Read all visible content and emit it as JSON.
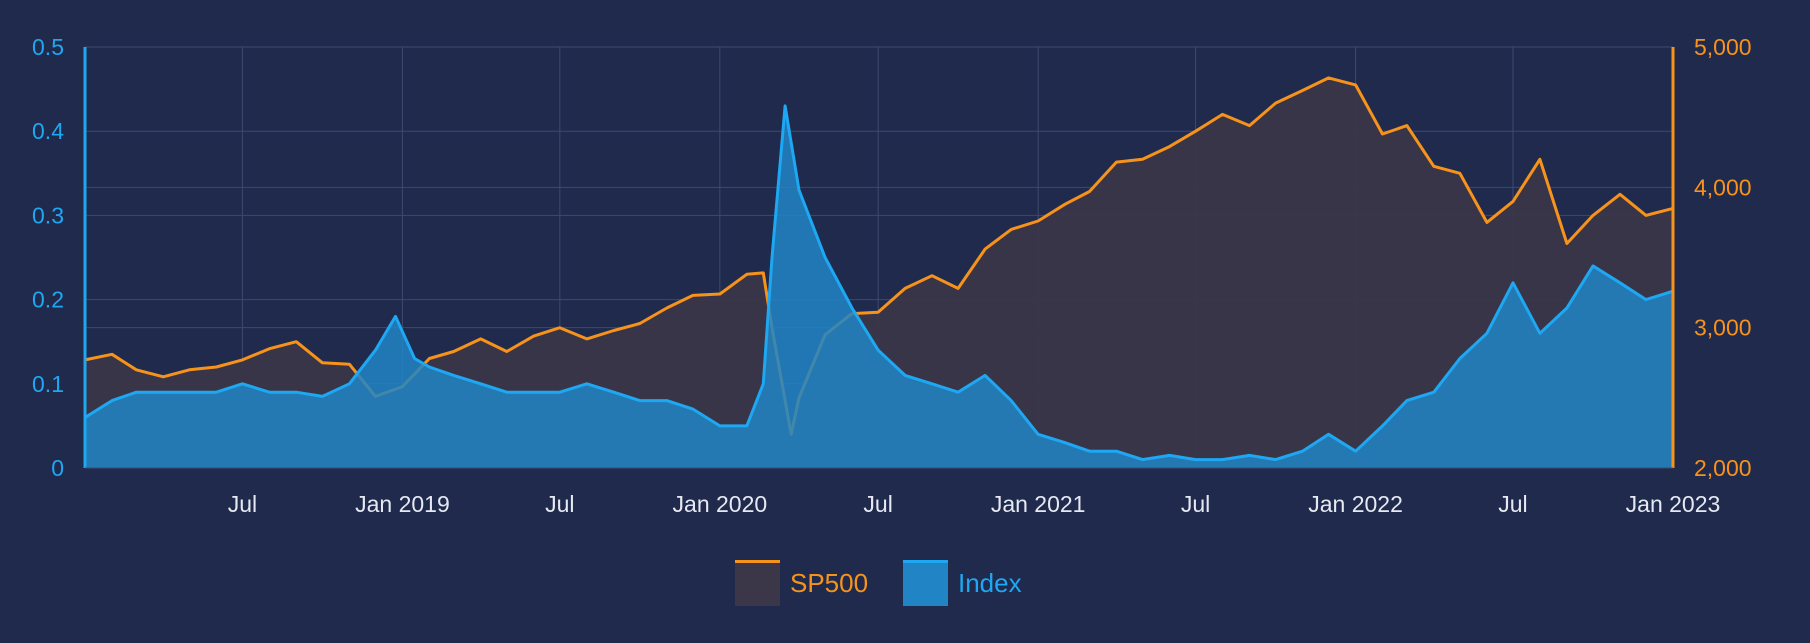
{
  "colors": {
    "background": "#1f2a4d",
    "grid": "#3d4a6e",
    "sp500_line": "#f7931a",
    "sp500_fill": "#3b3648",
    "index_line": "#1ea7f2",
    "index_fill": "#2185c5",
    "x_tick": "#e6e9f2"
  },
  "chart_data": {
    "type": "area",
    "grid": true,
    "legend_position": "bottom-center",
    "x_range": [
      "2018-01-01",
      "2023-01-01"
    ],
    "x_ticks": [
      "Jul",
      "Jan 2019",
      "Jul",
      "Jan 2020",
      "Jul",
      "Jan 2021",
      "Jul",
      "Jan 2022",
      "Jul",
      "Jan 2023"
    ],
    "x_tick_dates": [
      "2018-07-01",
      "2019-01-01",
      "2019-07-01",
      "2020-01-01",
      "2020-07-01",
      "2021-01-01",
      "2021-07-01",
      "2022-01-01",
      "2022-07-01",
      "2023-01-01"
    ],
    "y_left": {
      "range": [
        0,
        0.5
      ],
      "ticks": [
        "0",
        "0.1",
        "0.2",
        "0.3",
        "0.4",
        "0.5"
      ]
    },
    "y_right": {
      "range": [
        2000,
        5000
      ],
      "ticks": [
        "2,000",
        "3,000",
        "4,000",
        "5,000"
      ]
    },
    "series": [
      {
        "name": "SP500",
        "axis": "right",
        "x": [
          "2018-01-01",
          "2018-02-01",
          "2018-03-01",
          "2018-04-01",
          "2018-05-01",
          "2018-06-01",
          "2018-07-01",
          "2018-08-01",
          "2018-09-01",
          "2018-10-01",
          "2018-11-01",
          "2018-12-01",
          "2019-01-01",
          "2019-02-01",
          "2019-03-01",
          "2019-04-01",
          "2019-05-01",
          "2019-06-01",
          "2019-07-01",
          "2019-08-01",
          "2019-09-01",
          "2019-10-01",
          "2019-11-01",
          "2019-12-01",
          "2020-01-01",
          "2020-02-01",
          "2020-02-20",
          "2020-03-01",
          "2020-03-23",
          "2020-04-01",
          "2020-05-01",
          "2020-06-01",
          "2020-07-01",
          "2020-08-01",
          "2020-09-01",
          "2020-10-01",
          "2020-11-01",
          "2020-12-01",
          "2021-01-01",
          "2021-02-01",
          "2021-03-01",
          "2021-04-01",
          "2021-05-01",
          "2021-06-01",
          "2021-07-01",
          "2021-08-01",
          "2021-09-01",
          "2021-10-01",
          "2021-11-01",
          "2021-12-01",
          "2022-01-01",
          "2022-02-01",
          "2022-03-01",
          "2022-04-01",
          "2022-05-01",
          "2022-06-01",
          "2022-07-01",
          "2022-08-01",
          "2022-09-01",
          "2022-10-01",
          "2022-11-01",
          "2022-12-01",
          "2023-01-01"
        ],
        "values": [
          2770,
          2810,
          2700,
          2650,
          2700,
          2720,
          2770,
          2850,
          2900,
          2750,
          2740,
          2510,
          2580,
          2780,
          2830,
          2920,
          2830,
          2940,
          3000,
          2920,
          2980,
          3030,
          3140,
          3230,
          3240,
          3380,
          3390,
          3000,
          2240,
          2500,
          2950,
          3100,
          3110,
          3280,
          3370,
          3280,
          3560,
          3700,
          3760,
          3880,
          3970,
          4180,
          4200,
          4290,
          4400,
          4520,
          4440,
          4600,
          4690,
          4780,
          4730,
          4380,
          4440,
          4150,
          4100,
          3750,
          3900,
          4200,
          3600,
          3800,
          3950,
          3800,
          3850
        ]
      },
      {
        "name": "Index",
        "axis": "left",
        "x": [
          "2018-01-01",
          "2018-02-01",
          "2018-03-01",
          "2018-04-01",
          "2018-05-01",
          "2018-06-01",
          "2018-07-01",
          "2018-08-01",
          "2018-09-01",
          "2018-10-01",
          "2018-11-01",
          "2018-12-01",
          "2018-12-24",
          "2019-01-15",
          "2019-02-01",
          "2019-03-01",
          "2019-04-01",
          "2019-05-01",
          "2019-06-01",
          "2019-07-01",
          "2019-08-01",
          "2019-09-01",
          "2019-10-01",
          "2019-11-01",
          "2019-12-01",
          "2020-01-01",
          "2020-02-01",
          "2020-02-20",
          "2020-03-01",
          "2020-03-16",
          "2020-04-01",
          "2020-05-01",
          "2020-06-01",
          "2020-07-01",
          "2020-08-01",
          "2020-09-01",
          "2020-10-01",
          "2020-11-01",
          "2020-12-01",
          "2021-01-01",
          "2021-02-01",
          "2021-03-01",
          "2021-04-01",
          "2021-05-01",
          "2021-06-01",
          "2021-07-01",
          "2021-08-01",
          "2021-09-01",
          "2021-10-01",
          "2021-11-01",
          "2021-12-01",
          "2022-01-01",
          "2022-02-01",
          "2022-03-01",
          "2022-04-01",
          "2022-05-01",
          "2022-06-01",
          "2022-07-01",
          "2022-08-01",
          "2022-09-01",
          "2022-10-01",
          "2022-11-01",
          "2022-12-01",
          "2023-01-01"
        ],
        "values": [
          0.06,
          0.08,
          0.09,
          0.09,
          0.09,
          0.09,
          0.1,
          0.09,
          0.09,
          0.085,
          0.1,
          0.14,
          0.18,
          0.13,
          0.12,
          0.11,
          0.1,
          0.09,
          0.09,
          0.09,
          0.1,
          0.09,
          0.08,
          0.08,
          0.07,
          0.05,
          0.05,
          0.1,
          0.25,
          0.43,
          0.33,
          0.25,
          0.19,
          0.14,
          0.11,
          0.1,
          0.09,
          0.11,
          0.08,
          0.04,
          0.03,
          0.02,
          0.02,
          0.01,
          0.015,
          0.01,
          0.01,
          0.015,
          0.01,
          0.02,
          0.04,
          0.02,
          0.05,
          0.08,
          0.09,
          0.13,
          0.16,
          0.22,
          0.16,
          0.19,
          0.24,
          0.22,
          0.2,
          0.21
        ]
      }
    ]
  }
}
